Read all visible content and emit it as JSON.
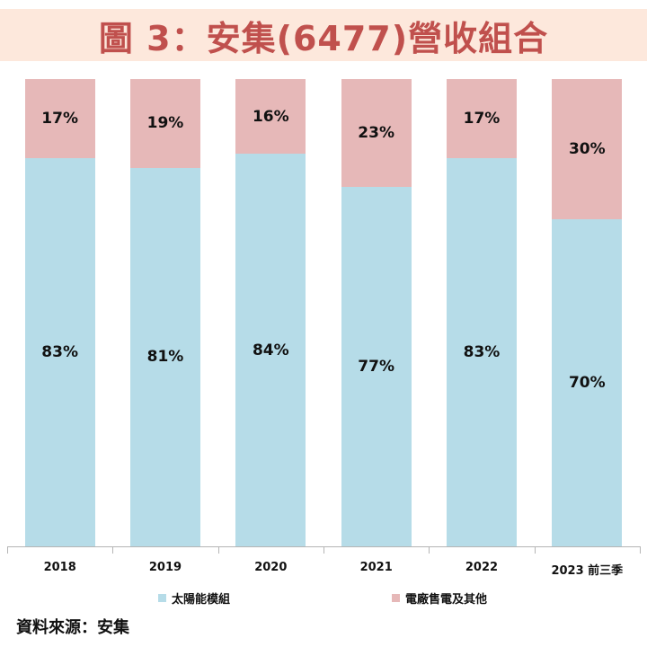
{
  "header": {
    "title": "圖 3：安集(6477)營收組合"
  },
  "colors": {
    "title_band": "#fde8dc",
    "title_text": "#c0504d",
    "solar": "#b6dce8",
    "other": "#e6b8b8"
  },
  "legend": {
    "items": [
      {
        "label": "太陽能模組",
        "color": "#b6dce8"
      },
      {
        "label": "電廠售電及其他",
        "color": "#e6b8b8"
      }
    ]
  },
  "footer": {
    "source": "資料來源：安集"
  },
  "chart_data": {
    "type": "bar",
    "stacked": true,
    "percent_stacked": true,
    "title": "圖 3：安集(6477)營收組合",
    "xlabel": "",
    "ylabel": "",
    "ylim": [
      0,
      100
    ],
    "grid": false,
    "legend_position": "bottom",
    "categories": [
      "2018",
      "2019",
      "2020",
      "2021",
      "2022",
      "2023 前三季"
    ],
    "series": [
      {
        "name": "太陽能模組",
        "values": [
          83,
          81,
          84,
          77,
          83,
          70
        ],
        "labels": [
          "83%",
          "81%",
          "84%",
          "77%",
          "83%",
          "70%"
        ]
      },
      {
        "name": "電廠售電及其他",
        "values": [
          17,
          19,
          16,
          23,
          17,
          30
        ],
        "labels": [
          "17%",
          "19%",
          "16%",
          "23%",
          "17%",
          "30%"
        ]
      }
    ]
  }
}
